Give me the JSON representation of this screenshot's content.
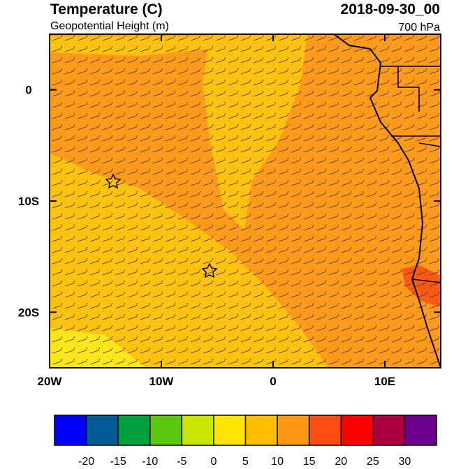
{
  "title": "Temperature (C)",
  "subtitle": "Geopotential Height (m)",
  "date": "2018-09-30_00",
  "level": "700 hPa",
  "map": {
    "xlim": [
      -20,
      15
    ],
    "ylim": [
      -25,
      5
    ],
    "xticks": [
      {
        "value": -20,
        "label": "20W"
      },
      {
        "value": -10,
        "label": "10W"
      },
      0,
      {
        "value": 10,
        "label": "10E"
      }
    ],
    "yticks": [
      0,
      {
        "value": -10,
        "label": "10S"
      },
      {
        "value": -20,
        "label": "20S"
      }
    ]
  },
  "colorbar": {
    "colors": [
      "#0000ff",
      "#005a96",
      "#00a03c",
      "#5ac80f",
      "#c8e600",
      "#ffe600",
      "#ffbe00",
      "#ff9614",
      "#ff4b14",
      "#ff0000",
      "#aa0040",
      "#6e0090"
    ],
    "ticks": [
      -20,
      -15,
      -10,
      -5,
      0,
      5,
      10,
      15,
      20,
      25,
      30
    ]
  }
}
